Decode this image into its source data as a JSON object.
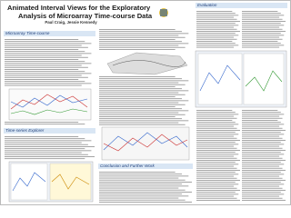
{
  "header": {
    "title_lines": [
      "Animated Interval Views for the Exploratory",
      "Analysis of Microarray Time-course Data"
    ],
    "authors": "Paul Craig, Jessie Kennedy"
  },
  "sections": [
    {
      "heading": "Microarray Time-course"
    },
    {
      "heading": "Time-series Explorer"
    },
    {
      "heading": "Conclusion and Further Work"
    },
    {
      "heading": "Evaluation"
    }
  ]
}
